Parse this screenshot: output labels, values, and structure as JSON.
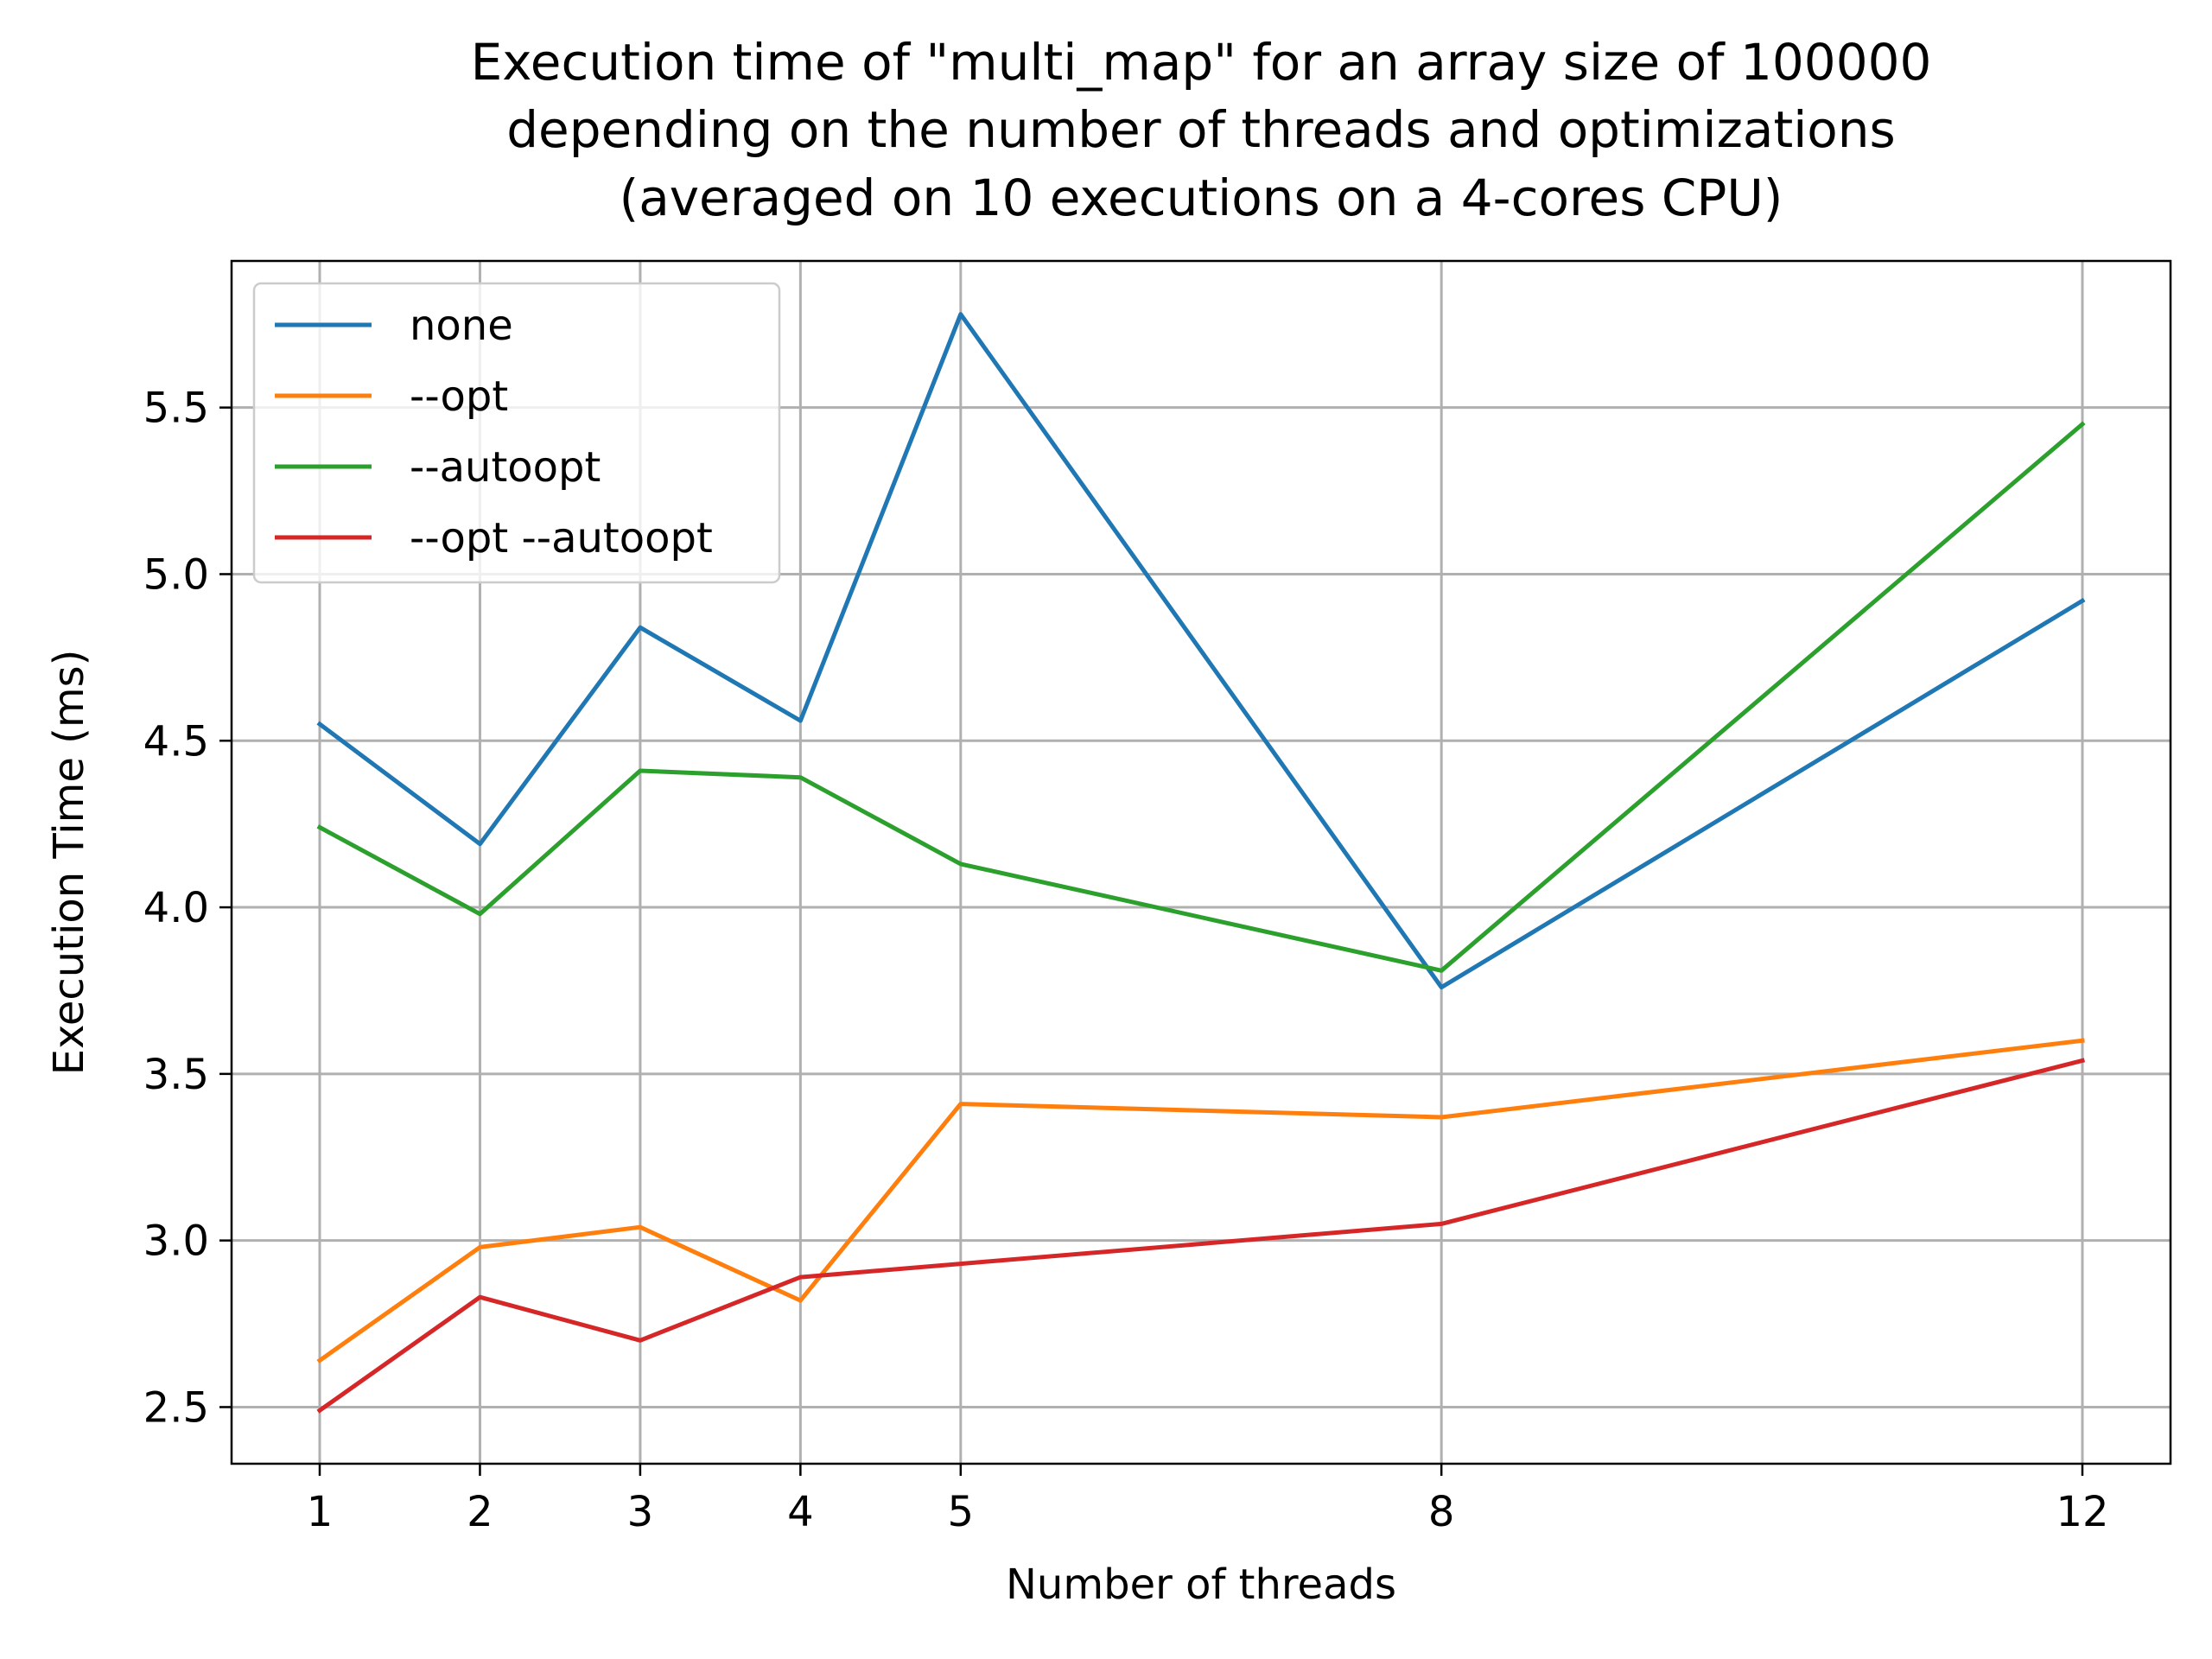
{
  "chart_data": {
    "type": "line",
    "title": "Execution time of \"multi_map\" for an array size of 100000\ndepending on the number of threads and optimizations\n(averaged on 10 executions on a 4-cores CPU)",
    "title_lines": [
      "Execution time of \"multi_map\" for an array size of 100000",
      "depending on the number of threads and optimizations",
      "(averaged on 10 executions on a 4-cores CPU)"
    ],
    "xlabel": "Number of threads",
    "ylabel": "Execution Time (ms)",
    "x": [
      1,
      2,
      3,
      4,
      5,
      8,
      12
    ],
    "xticks": [
      1,
      2,
      3,
      4,
      5,
      8,
      12
    ],
    "xtick_labels": [
      "1",
      "2",
      "3",
      "4",
      "5",
      "8",
      "12"
    ],
    "yticks": [
      2.5,
      3.0,
      3.5,
      4.0,
      4.5,
      5.0,
      5.5
    ],
    "ytick_labels": [
      "2.5",
      "3.0",
      "3.5",
      "4.0",
      "4.5",
      "5.0",
      "5.5"
    ],
    "xlim": [
      0.45,
      12.55
    ],
    "ylim": [
      2.33,
      5.94
    ],
    "grid": true,
    "legend_position": "upper-left",
    "series": [
      {
        "name": "none",
        "color": "#1f77b4",
        "values": [
          4.55,
          4.19,
          4.84,
          4.56,
          5.78,
          3.76,
          4.92
        ]
      },
      {
        "name": "--opt",
        "color": "#ff7f0e",
        "values": [
          2.64,
          2.98,
          3.04,
          2.82,
          3.41,
          3.37,
          3.6
        ]
      },
      {
        "name": "--autoopt",
        "color": "#2ca02c",
        "values": [
          4.24,
          3.98,
          4.41,
          4.39,
          4.13,
          3.81,
          5.45
        ]
      },
      {
        "name": "--opt --autoopt",
        "color": "#d62728",
        "values": [
          2.49,
          2.83,
          2.7,
          2.89,
          2.93,
          3.05,
          3.54
        ]
      }
    ]
  }
}
